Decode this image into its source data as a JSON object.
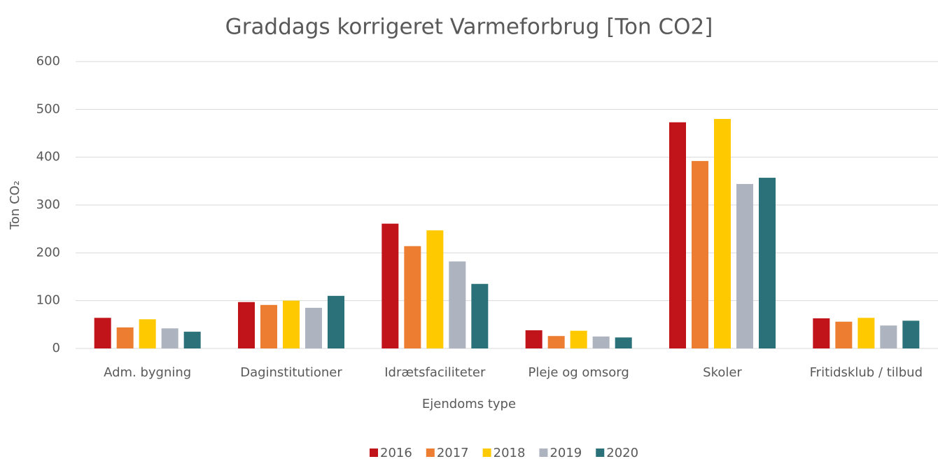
{
  "chart_data": {
    "type": "bar",
    "title": "Graddags korrigeret Varmeforbrug [Ton CO2]",
    "x_label": "Ejendoms type",
    "y_label": "Ton CO₂",
    "categories": [
      "Adm. bygning",
      "Daginstitutioner",
      "Idrætsfaciliteter",
      "Pleje og omsorg",
      "Skoler",
      "Fritidsklub / tilbud"
    ],
    "series": [
      {
        "name": "2016",
        "color": "#c0141a",
        "values": [
          64,
          97,
          261,
          38,
          473,
          63
        ]
      },
      {
        "name": "2017",
        "color": "#ed7d31",
        "values": [
          44,
          91,
          214,
          26,
          392,
          56
        ]
      },
      {
        "name": "2018",
        "color": "#ffc900",
        "values": [
          61,
          100,
          247,
          37,
          480,
          64
        ]
      },
      {
        "name": "2019",
        "color": "#adb4bf",
        "values": [
          42,
          85,
          182,
          25,
          344,
          48
        ]
      },
      {
        "name": "2020",
        "color": "#2b7179",
        "values": [
          35,
          110,
          135,
          23,
          357,
          58
        ]
      }
    ],
    "ylim": [
      0,
      600
    ],
    "yticks": [
      0,
      100,
      200,
      300,
      400,
      500,
      600
    ],
    "grid": true,
    "legend": "bottom"
  }
}
